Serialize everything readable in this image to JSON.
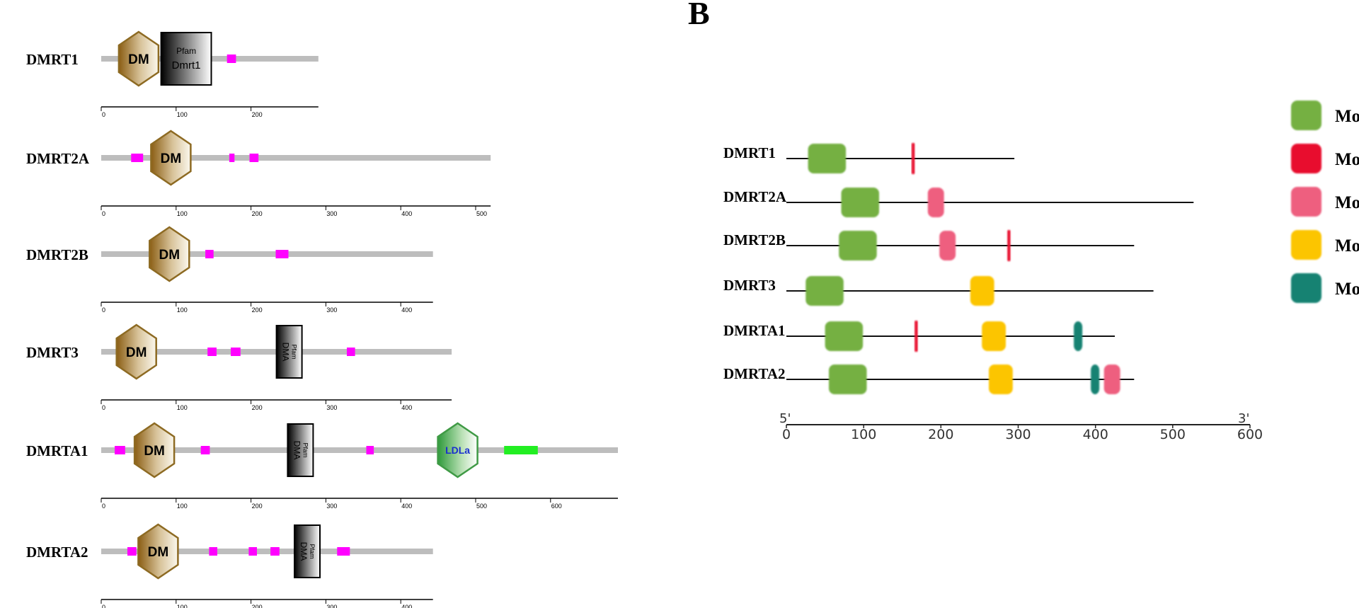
{
  "panel_b": {
    "label": "B"
  },
  "panel_a": {
    "ticks_step": 100,
    "proteins": [
      {
        "name": "DMRT1",
        "length": 290,
        "axis_max": 290,
        "domains": [
          {
            "type": "DM",
            "center": 50,
            "label": "DM"
          },
          {
            "type": "pfam-box",
            "start": 80,
            "end": 147,
            "label_top": "Pfam",
            "label_bottom": "Dmrt1"
          }
        ],
        "motifs": [
          {
            "start": 168,
            "end": 180
          }
        ]
      },
      {
        "name": "DMRT2A",
        "length": 520,
        "axis_max": 520,
        "domains": [
          {
            "type": "DM",
            "center": 93,
            "label": "DM"
          }
        ],
        "motifs": [
          {
            "start": 40,
            "end": 56
          },
          {
            "start": 171,
            "end": 178
          },
          {
            "start": 198,
            "end": 210
          }
        ]
      },
      {
        "name": "DMRT2B",
        "length": 443,
        "axis_max": 443,
        "domains": [
          {
            "type": "DM",
            "center": 91,
            "label": "DM"
          }
        ],
        "motifs": [
          {
            "start": 139,
            "end": 150
          },
          {
            "start": 233,
            "end": 250
          }
        ]
      },
      {
        "name": "DMRT3",
        "length": 468,
        "axis_max": 468,
        "domains": [
          {
            "type": "DM",
            "center": 47,
            "label": "DM"
          },
          {
            "type": "pfam-vert",
            "start": 234,
            "end": 268,
            "label_top": "Pfam",
            "label_bottom": "DMA"
          }
        ],
        "motifs": [
          {
            "start": 142,
            "end": 154
          },
          {
            "start": 173,
            "end": 186
          },
          {
            "start": 328,
            "end": 339
          }
        ]
      },
      {
        "name": "DMRTA1",
        "length": 690,
        "axis_max": 690,
        "domains": [
          {
            "type": "DM",
            "center": 71,
            "label": "DM"
          },
          {
            "type": "pfam-vert",
            "start": 249,
            "end": 283,
            "label_top": "Pfam",
            "label_bottom": "DMA"
          },
          {
            "type": "LDLa",
            "center": 476,
            "label": "LDLa"
          }
        ],
        "motifs": [
          {
            "start": 18,
            "end": 32
          },
          {
            "start": 133,
            "end": 145
          },
          {
            "start": 354,
            "end": 364
          }
        ],
        "green_bars": [
          {
            "start": 538,
            "end": 583
          }
        ]
      },
      {
        "name": "DMRTA2",
        "length": 443,
        "axis_max": 443,
        "domains": [
          {
            "type": "DM",
            "center": 76,
            "label": "DM"
          },
          {
            "type": "pfam-vert",
            "start": 258,
            "end": 292,
            "label_top": "Pfam",
            "label_bottom": "DMA"
          }
        ],
        "motifs": [
          {
            "start": 35,
            "end": 47
          },
          {
            "start": 144,
            "end": 155
          },
          {
            "start": 197,
            "end": 208
          },
          {
            "start": 226,
            "end": 238
          },
          {
            "start": 315,
            "end": 332
          }
        ]
      }
    ]
  },
  "chart_data": {
    "type": "motif-map",
    "axis": {
      "min": 0,
      "max": 600,
      "ticks": [
        0,
        100,
        200,
        300,
        400,
        500,
        600
      ],
      "left_label": "5'",
      "right_label": "3'"
    },
    "colors": {
      "motif_green": "#74b043",
      "motif_red": "#e8112d",
      "motif_pink": "#ee5f7f",
      "motif_yellow": "#fcc500",
      "motif_teal": "#128272"
    },
    "legend": [
      {
        "color": "#74b043",
        "label": "Mo"
      },
      {
        "color": "#e8112d",
        "label": "Mo"
      },
      {
        "color": "#ee5f7f",
        "label": "Mo"
      },
      {
        "color": "#fcc500",
        "label": "Mo"
      },
      {
        "color": "#128272",
        "label": "Mo"
      }
    ],
    "proteins": [
      {
        "name": "DMRT1",
        "length": 295,
        "motifs": [
          {
            "color": "#74b043",
            "start": 28,
            "end": 77
          },
          {
            "color": "#e8112d",
            "start": 162,
            "end": 166
          }
        ]
      },
      {
        "name": "DMRT2A",
        "length": 527,
        "motifs": [
          {
            "color": "#74b043",
            "start": 71,
            "end": 120
          },
          {
            "color": "#ee5f7f",
            "start": 183,
            "end": 204
          }
        ]
      },
      {
        "name": "DMRT2B",
        "length": 450,
        "motifs": [
          {
            "color": "#74b043",
            "start": 68,
            "end": 117
          },
          {
            "color": "#ee5f7f",
            "start": 198,
            "end": 219
          },
          {
            "color": "#e8112d",
            "start": 286,
            "end": 290
          }
        ]
      },
      {
        "name": "DMRT3",
        "length": 475,
        "motifs": [
          {
            "color": "#74b043",
            "start": 25,
            "end": 74
          },
          {
            "color": "#fcc500",
            "start": 238,
            "end": 269
          }
        ]
      },
      {
        "name": "DMRTA1",
        "length": 425,
        "motifs": [
          {
            "color": "#74b043",
            "start": 50,
            "end": 99
          },
          {
            "color": "#e8112d",
            "start": 166,
            "end": 170
          },
          {
            "color": "#fcc500",
            "start": 253,
            "end": 284
          },
          {
            "color": "#128272",
            "start": 372,
            "end": 383
          }
        ]
      },
      {
        "name": "DMRTA2",
        "length": 450,
        "motifs": [
          {
            "color": "#74b043",
            "start": 55,
            "end": 104
          },
          {
            "color": "#fcc500",
            "start": 262,
            "end": 293
          },
          {
            "color": "#128272",
            "start": 394,
            "end": 405
          },
          {
            "color": "#ee5f7f",
            "start": 411,
            "end": 432
          }
        ]
      }
    ]
  }
}
